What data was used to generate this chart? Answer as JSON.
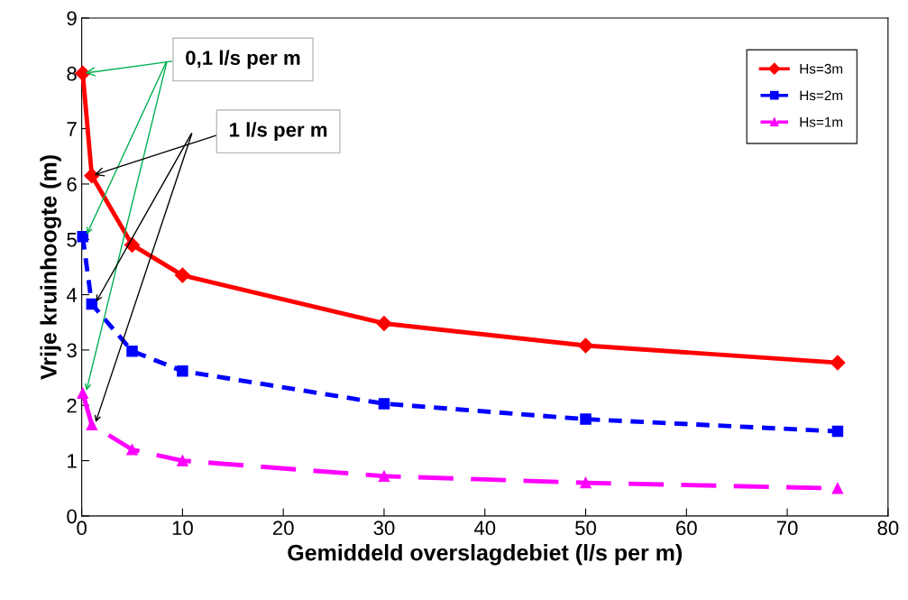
{
  "chart_data": {
    "type": "line",
    "xlabel": "Gemiddeld overslagdebiet (l/s per m)",
    "ylabel": "Vrije kruinhoogte (m)",
    "x": [
      0.1,
      1,
      5,
      10,
      30,
      50,
      75
    ],
    "series": [
      {
        "name": "Hs=3m",
        "color": "#ff0000",
        "marker": "diamond",
        "line_style": "solid",
        "values": [
          8.0,
          6.15,
          4.9,
          4.35,
          3.48,
          3.08,
          2.77
        ]
      },
      {
        "name": "Hs=2m",
        "color": "#0000ff",
        "marker": "square",
        "line_style": "dotted",
        "values": [
          5.05,
          3.83,
          2.98,
          2.62,
          2.03,
          1.75,
          1.53
        ]
      },
      {
        "name": "Hs=1m",
        "color": "#ff00ff",
        "marker": "triangle",
        "line_style": "dashed",
        "values": [
          2.22,
          1.65,
          1.2,
          1.0,
          0.72,
          0.6,
          0.5
        ]
      }
    ],
    "xlim": [
      0,
      80
    ],
    "xticks": [
      0,
      10,
      20,
      30,
      40,
      50,
      60,
      70,
      80
    ],
    "ylim": [
      0,
      9
    ],
    "yticks": [
      0,
      1,
      2,
      3,
      4,
      5,
      6,
      7,
      8,
      9
    ],
    "grid": false,
    "legend": "top right",
    "annotations": [
      {
        "text": "0,1 l/s per m",
        "x": 0.1,
        "y": 8.0
      },
      {
        "text": "1 l/s per m",
        "x": 1,
        "y": 6.15
      }
    ]
  }
}
